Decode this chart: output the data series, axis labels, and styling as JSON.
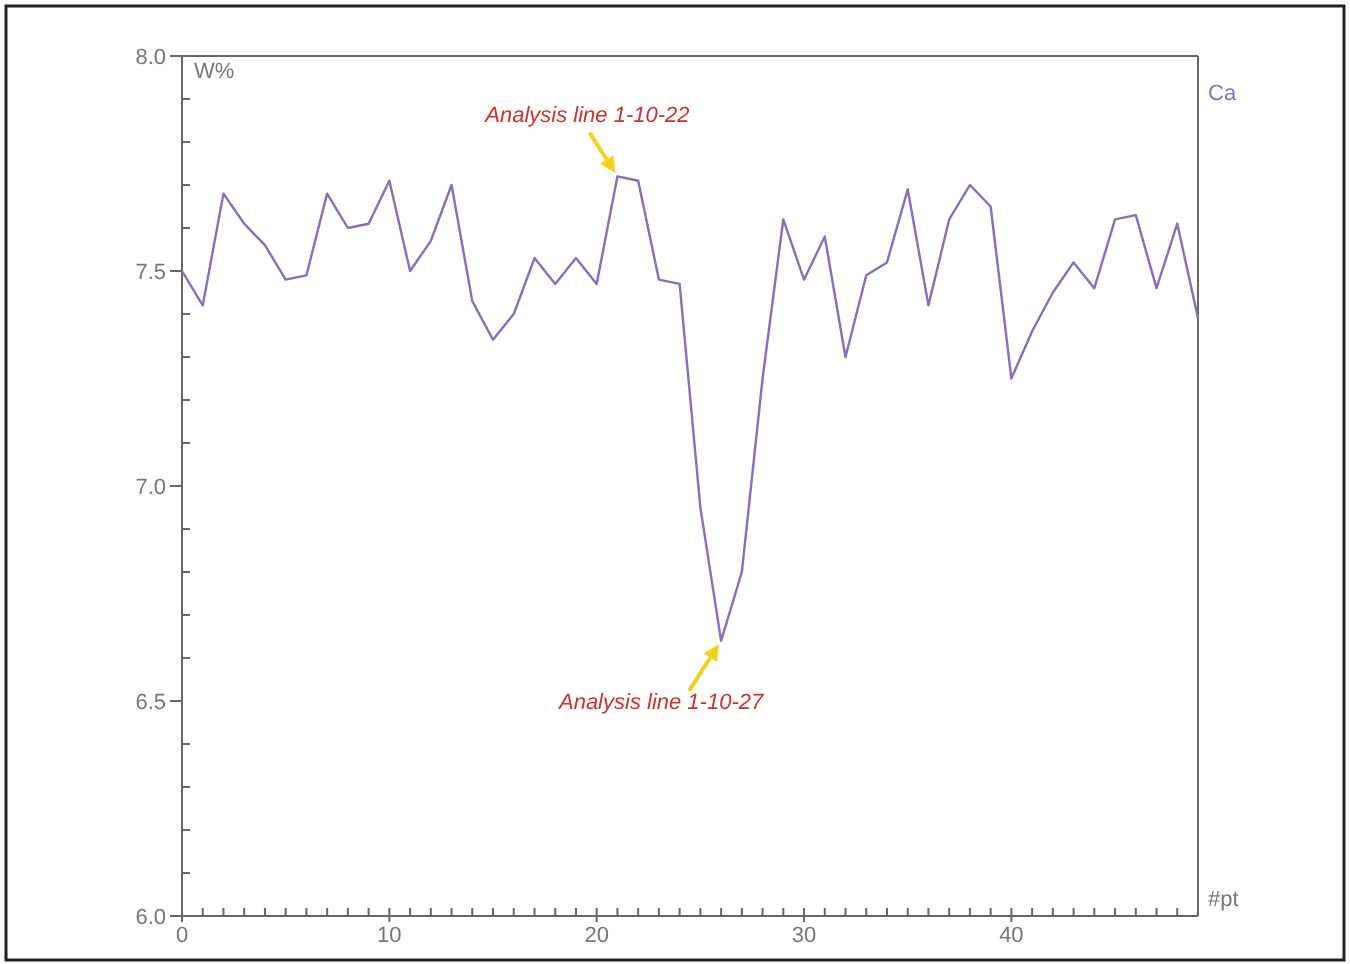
{
  "chart_data": {
    "type": "line",
    "xlabel": "#pt",
    "ylabel": "W%",
    "x": [
      0,
      1,
      2,
      3,
      4,
      5,
      6,
      7,
      8,
      9,
      10,
      11,
      12,
      13,
      14,
      15,
      16,
      17,
      18,
      19,
      20,
      21,
      22,
      23,
      24,
      25,
      26,
      27,
      28,
      29,
      30,
      31,
      32,
      33,
      34,
      35,
      36,
      37,
      38,
      39,
      40,
      41,
      42,
      43,
      44,
      45,
      46,
      47,
      48,
      49
    ],
    "series": [
      {
        "name": "Ca",
        "color": "#8a6cc0",
        "values": [
          7.5,
          7.42,
          7.68,
          7.61,
          7.56,
          7.48,
          7.49,
          7.68,
          7.6,
          7.61,
          7.71,
          7.5,
          7.57,
          7.7,
          7.43,
          7.34,
          7.4,
          7.53,
          7.47,
          7.53,
          7.47,
          7.72,
          7.71,
          7.48,
          7.47,
          6.95,
          6.64,
          6.8,
          7.25,
          7.62,
          7.48,
          7.58,
          7.3,
          7.49,
          7.52,
          7.69,
          7.42,
          7.62,
          7.7,
          7.65,
          7.25,
          7.36,
          7.45,
          7.52,
          7.46,
          7.62,
          7.63,
          7.46,
          7.61,
          7.39
        ]
      }
    ],
    "xlim": [
      0,
      49
    ],
    "xticks": [
      0,
      {
        "value": 1,
        "label": null
      },
      {
        "value": 2,
        "label": null
      },
      {
        "value": 3,
        "label": null
      },
      {
        "value": 4,
        "label": null
      },
      {
        "value": 5,
        "label": null
      },
      {
        "value": 6,
        "label": null
      },
      {
        "value": 7,
        "label": null
      },
      {
        "value": 8,
        "label": null
      },
      {
        "value": 9,
        "label": null
      },
      10,
      {
        "value": 11,
        "label": null
      },
      {
        "value": 12,
        "label": null
      },
      {
        "value": 13,
        "label": null
      },
      {
        "value": 14,
        "label": null
      },
      {
        "value": 15,
        "label": null
      },
      {
        "value": 16,
        "label": null
      },
      {
        "value": 17,
        "label": null
      },
      {
        "value": 18,
        "label": null
      },
      {
        "value": 19,
        "label": null
      },
      20,
      {
        "value": 21,
        "label": null
      },
      {
        "value": 22,
        "label": null
      },
      {
        "value": 23,
        "label": null
      },
      {
        "value": 24,
        "label": null
      },
      {
        "value": 25,
        "label": null
      },
      {
        "value": 26,
        "label": null
      },
      {
        "value": 27,
        "label": null
      },
      {
        "value": 28,
        "label": null
      },
      {
        "value": 29,
        "label": null
      },
      30,
      {
        "value": 31,
        "label": null
      },
      {
        "value": 32,
        "label": null
      },
      {
        "value": 33,
        "label": null
      },
      {
        "value": 34,
        "label": null
      },
      {
        "value": 35,
        "label": null
      },
      {
        "value": 36,
        "label": null
      },
      {
        "value": 37,
        "label": null
      },
      {
        "value": 38,
        "label": null
      },
      {
        "value": 39,
        "label": null
      },
      40,
      {
        "value": 41,
        "label": null
      },
      {
        "value": 42,
        "label": null
      },
      {
        "value": 43,
        "label": null
      },
      {
        "value": 44,
        "label": null
      },
      {
        "value": 45,
        "label": null
      },
      {
        "value": 46,
        "label": null
      },
      {
        "value": 47,
        "label": null
      },
      {
        "value": 48,
        "label": null
      },
      {
        "value": 49,
        "label": null
      }
    ],
    "ylim": [
      6.0,
      8.0
    ],
    "yticks": [
      {
        "value": 6.0,
        "label": "6.0"
      },
      {
        "value": 6.1,
        "label": null
      },
      {
        "value": 6.2,
        "label": null
      },
      {
        "value": 6.3,
        "label": null
      },
      {
        "value": 6.4,
        "label": null
      },
      {
        "value": 6.5,
        "label": "6.5"
      },
      {
        "value": 6.6,
        "label": null
      },
      {
        "value": 6.7,
        "label": null
      },
      {
        "value": 6.8,
        "label": null
      },
      {
        "value": 6.9,
        "label": null
      },
      {
        "value": 7.0,
        "label": "7.0"
      },
      {
        "value": 7.1,
        "label": null
      },
      {
        "value": 7.2,
        "label": null
      },
      {
        "value": 7.3,
        "label": null
      },
      {
        "value": 7.4,
        "label": null
      },
      {
        "value": 7.5,
        "label": "7.5"
      },
      {
        "value": 7.6,
        "label": null
      },
      {
        "value": 7.7,
        "label": null
      },
      {
        "value": 7.8,
        "label": null
      },
      {
        "value": 7.9,
        "label": null
      },
      {
        "value": 8.0,
        "label": "8.0"
      }
    ],
    "annotations": [
      {
        "text": "Analysis line 1-10-22",
        "x": 21,
        "y": 7.72
      },
      {
        "text": "Analysis line 1-10-27",
        "x": 26,
        "y": 6.64
      }
    ]
  }
}
